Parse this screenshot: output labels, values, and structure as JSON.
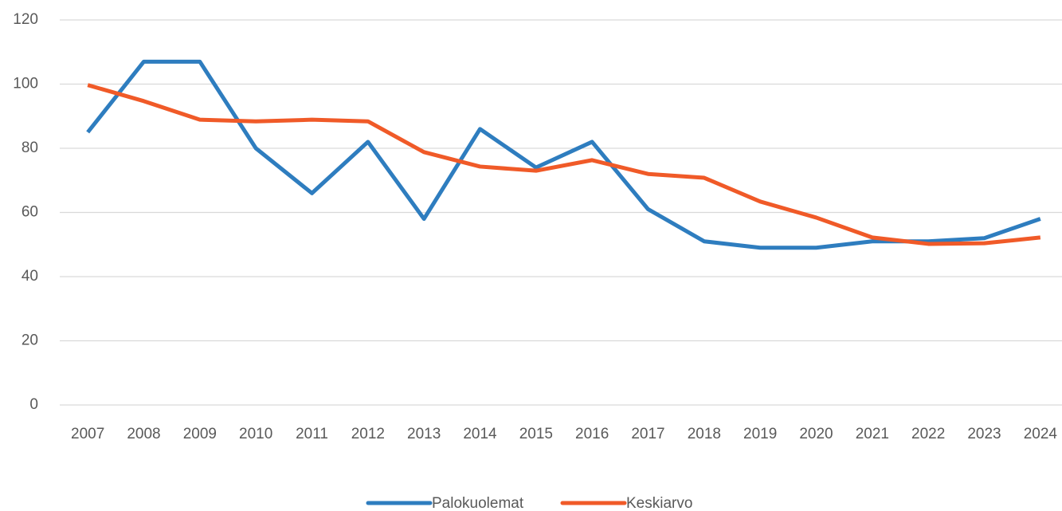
{
  "chart_data": {
    "type": "line",
    "categories": [
      "2007",
      "2008",
      "2009",
      "2010",
      "2011",
      "2012",
      "2013",
      "2014",
      "2015",
      "2016",
      "2017",
      "2018",
      "2019",
      "2020",
      "2021",
      "2022",
      "2023",
      "2024"
    ],
    "series": [
      {
        "name": "Palokuolemat",
        "color": "#2e7dbf",
        "values": [
          85,
          107,
          107,
          80,
          66,
          82,
          58,
          86,
          74,
          82,
          61,
          51,
          49,
          49,
          51,
          51,
          52,
          58
        ]
      },
      {
        "name": "Keskiarvo",
        "color": "#f05a28",
        "values": [
          99.7,
          94.7,
          88.9,
          88.4,
          88.9,
          88.4,
          78.8,
          74.3,
          73,
          76.3,
          72,
          70.8,
          63.4,
          58.4,
          52.2,
          50.2,
          50.4,
          52.2
        ]
      }
    ],
    "ylim": [
      0,
      120
    ],
    "yticks": [
      0,
      20,
      40,
      60,
      80,
      100,
      120
    ],
    "grid": true,
    "legend": "bottom"
  }
}
